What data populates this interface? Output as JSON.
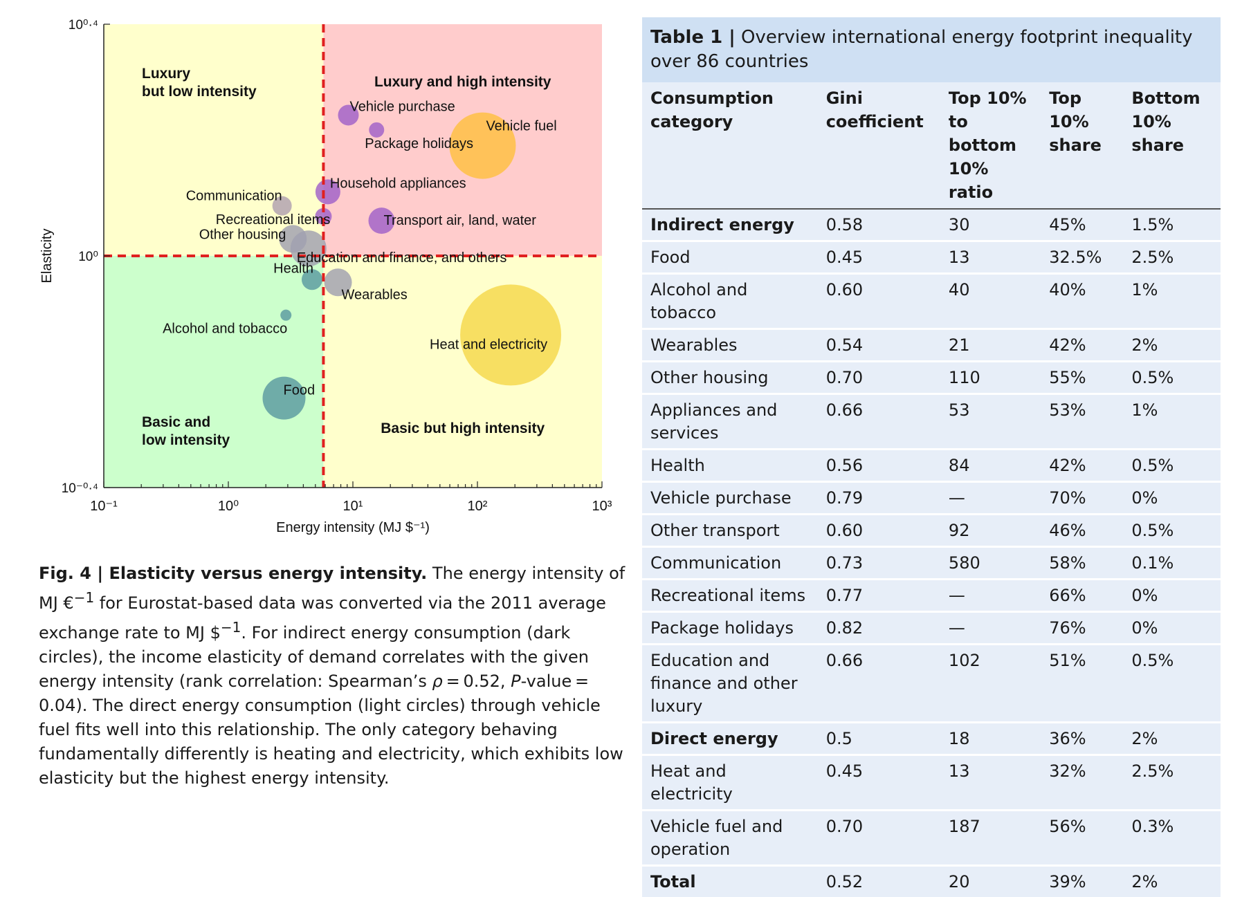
{
  "chart_data": {
    "type": "scatter",
    "xlabel": "Energy intensity (MJ $⁻¹)",
    "ylabel": "Elasticity",
    "x_scale": "log",
    "y_scale": "log",
    "xlim": [
      0.1,
      1000
    ],
    "ylim": [
      0.398,
      2.512
    ],
    "x_ticks": [
      {
        "value": 0.1,
        "label": "10⁻¹"
      },
      {
        "value": 1,
        "label": "10⁰"
      },
      {
        "value": 10,
        "label": "10¹"
      },
      {
        "value": 100,
        "label": "10²"
      },
      {
        "value": 1000,
        "label": "10³"
      }
    ],
    "y_ticks": [
      {
        "value": 2.512,
        "label": "10⁰·⁴"
      },
      {
        "value": 1,
        "label": "10⁰"
      },
      {
        "value": 0.398,
        "label": "10⁻⁰·⁴"
      }
    ],
    "threshold_x": 5.8,
    "threshold_y": 1,
    "quadrants": [
      {
        "label": "Luxury\nbut low intensity",
        "pos": "top-left",
        "color": "#ffffcc"
      },
      {
        "label": "Luxury and high intensity",
        "pos": "top-right",
        "color": "#ffcccc"
      },
      {
        "label": "Basic and\nlow intensity",
        "pos": "bottom-left",
        "color": "#ccffcc"
      },
      {
        "label": "Basic but high intensity",
        "pos": "bottom-right",
        "color": "#ffffcc"
      }
    ],
    "points": [
      {
        "label": "Vehicle purchase",
        "x": 9.2,
        "y": 1.75,
        "r": 15,
        "color": "#a060c8"
      },
      {
        "label": "Package holidays",
        "x": 15.5,
        "y": 1.65,
        "r": 11,
        "color": "#a060c8"
      },
      {
        "label": "Vehicle fuel",
        "x": 110,
        "y": 1.55,
        "r": 48,
        "color": "#ffc040"
      },
      {
        "label": "Household appliances",
        "x": 6.3,
        "y": 1.29,
        "r": 18,
        "color": "#a060c8"
      },
      {
        "label": "Communication",
        "x": 2.7,
        "y": 1.22,
        "r": 14,
        "color": "#b0a0b0"
      },
      {
        "label": "Recreational items",
        "x": 5.8,
        "y": 1.17,
        "r": 12,
        "color": "#a060c8"
      },
      {
        "label": "Transport air, land, water",
        "x": 17,
        "y": 1.15,
        "r": 19,
        "color": "#a060c8"
      },
      {
        "label": "Other housing",
        "x": 3.3,
        "y": 1.07,
        "r": 20,
        "color": "#a0a0b0"
      },
      {
        "label": "Education and finance, and others",
        "x": 4.4,
        "y": 1.03,
        "r": 26,
        "color": "#a0a0b0"
      },
      {
        "label": "Health",
        "x": 4.7,
        "y": 0.91,
        "r": 15,
        "color": "#5a9aa0"
      },
      {
        "label": "Wearables",
        "x": 7.6,
        "y": 0.9,
        "r": 20,
        "color": "#a0a0b0"
      },
      {
        "label": "Alcohol and tobacco",
        "x": 2.9,
        "y": 0.79,
        "r": 8,
        "color": "#5a9aa0"
      },
      {
        "label": "Heat and electricity",
        "x": 185,
        "y": 0.73,
        "r": 73,
        "color": "#f5d84a"
      },
      {
        "label": "Food",
        "x": 2.8,
        "y": 0.568,
        "r": 31,
        "color": "#5a9aa0"
      }
    ]
  },
  "caption": {
    "label": "Fig. 4 | Elasticity versus energy intensity.",
    "text_a": " The energy intensity of MJ €",
    "sup_a": "−1",
    "text_b": " for Eurostat-based data was converted via the 2011 average exchange rate to MJ $",
    "sup_b": "−1",
    "text_c": ". For indirect energy consumption (dark circles), the income elasticity of demand correlates with the given energy intensity (rank correlation: Spearman’s ",
    "rho": "ρ",
    "text_d": " = 0.52, ",
    "p": "P",
    "text_e": "-value = 0.04). The direct energy consumption (light circles) through vehicle fuel fits well into this relationship. The only category behaving fundamentally differently is heating and electricity, which exhibits low elasticity but the highest energy intensity."
  },
  "table": {
    "title_bold": "Table 1 |",
    "title_rest": " Overview international energy footprint inequality over 86 countries",
    "headers": [
      [
        "Consumption",
        "category"
      ],
      [
        "Gini",
        "coefficient"
      ],
      [
        "Top 10%",
        "to bottom",
        "10% ratio"
      ],
      [
        "Top",
        "10%",
        "share"
      ],
      [
        "Bottom",
        "10%",
        "share"
      ]
    ],
    "rows": [
      {
        "bold": true,
        "cells": [
          "Indirect energy",
          "0.58",
          "30",
          "45%",
          "1.5%"
        ]
      },
      {
        "bold": false,
        "cells": [
          "Food",
          "0.45",
          "13",
          "32.5%",
          "2.5%"
        ]
      },
      {
        "bold": false,
        "cells": [
          "Alcohol and tobacco",
          "0.60",
          "40",
          "40%",
          "1%"
        ]
      },
      {
        "bold": false,
        "cells": [
          "Wearables",
          "0.54",
          "21",
          "42%",
          "2%"
        ]
      },
      {
        "bold": false,
        "cells": [
          "Other housing",
          "0.70",
          "110",
          "55%",
          "0.5%"
        ]
      },
      {
        "bold": false,
        "cells": [
          "Appliances and services",
          "0.66",
          "53",
          "53%",
          "1%"
        ]
      },
      {
        "bold": false,
        "cells": [
          "Health",
          "0.56",
          "84",
          "42%",
          "0.5%"
        ]
      },
      {
        "bold": false,
        "cells": [
          "Vehicle purchase",
          "0.79",
          "—",
          "70%",
          "0%"
        ]
      },
      {
        "bold": false,
        "cells": [
          "Other transport",
          "0.60",
          "92",
          "46%",
          "0.5%"
        ]
      },
      {
        "bold": false,
        "cells": [
          "Communication",
          "0.73",
          "580",
          "58%",
          "0.1%"
        ]
      },
      {
        "bold": false,
        "cells": [
          "Recreational items",
          "0.77",
          "—",
          "66%",
          "0%"
        ]
      },
      {
        "bold": false,
        "cells": [
          "Package holidays",
          "0.82",
          "—",
          "76%",
          "0%"
        ]
      },
      {
        "bold": false,
        "cells": [
          "Education and finance and other luxury",
          "0.66",
          "102",
          "51%",
          "0.5%"
        ]
      },
      {
        "bold": true,
        "cells": [
          "Direct energy",
          "0.5",
          "18",
          "36%",
          "2%"
        ]
      },
      {
        "bold": false,
        "cells": [
          "Heat and electricity",
          "0.45",
          "13",
          "32%",
          "2.5%"
        ]
      },
      {
        "bold": false,
        "cells": [
          "Vehicle fuel and operation",
          "0.70",
          "187",
          "56%",
          "0.3%"
        ]
      },
      {
        "bold": true,
        "cells": [
          "Total",
          "0.52",
          "20",
          "39%",
          "2%"
        ]
      }
    ]
  }
}
